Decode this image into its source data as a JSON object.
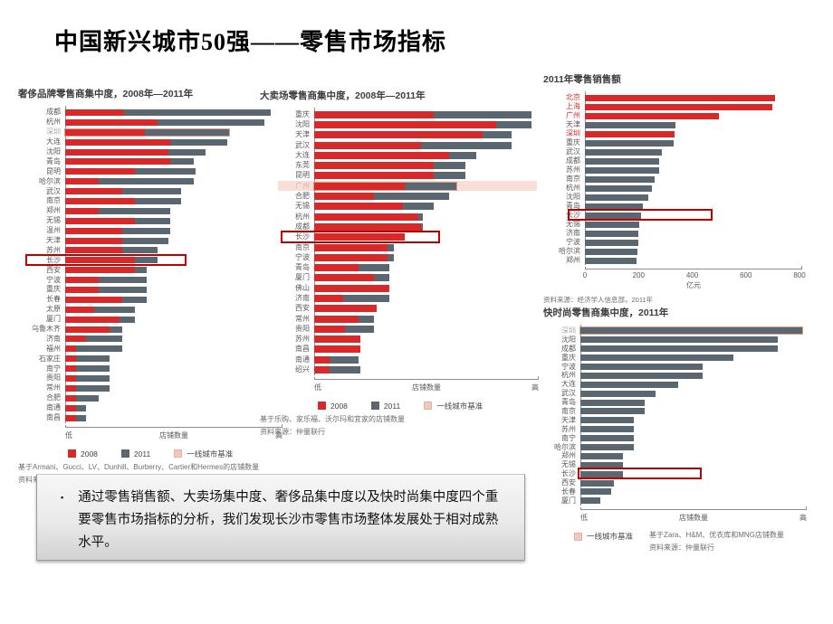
{
  "slide": {
    "title": "中国新兴城市50强——零售市场指标"
  },
  "colors": {
    "red": "#d7282a",
    "slate": "#5b6770",
    "benchmark_fill": "#f3c7ba",
    "benchmark_outline": "#e09b80",
    "highlight_box": "#c00000",
    "label_gray": "#595959",
    "label_benchmark": "#a6a6a6"
  },
  "chart_data": [
    {
      "type": "bar",
      "title": "奢侈品牌零售商集中度，2008年—2011年",
      "xlabel": "店铺数量",
      "x_axis_ends": [
        "低",
        "高"
      ],
      "legend": [
        "2008",
        "2011",
        "一线城市基准"
      ],
      "benchmark_city": "深圳",
      "highlight_city": "长沙",
      "footnotes": [
        "基于Armani、Gucci、LV、Dunhill、Burberry、Cartier和Hermes的店铺数量",
        "资料来源：仲量联行"
      ],
      "rows": [
        {
          "city": "成都",
          "y2008": 28,
          "y2011": 98
        },
        {
          "city": "杭州",
          "y2008": 44,
          "y2011": 95
        },
        {
          "city": "深圳",
          "y2008": 38,
          "y2011": 78,
          "benchmark": true
        },
        {
          "city": "大连",
          "y2008": 50,
          "y2011": 77
        },
        {
          "city": "沈阳",
          "y2008": 49,
          "y2011": 67
        },
        {
          "city": "青岛",
          "y2008": 50,
          "y2011": 61
        },
        {
          "city": "昆明",
          "y2008": 33,
          "y2011": 62
        },
        {
          "city": "哈尔滨",
          "y2008": 16,
          "y2011": 61
        },
        {
          "city": "武汉",
          "y2008": 27,
          "y2011": 55
        },
        {
          "city": "南京",
          "y2008": 33,
          "y2011": 55
        },
        {
          "city": "郑州",
          "y2008": 16,
          "y2011": 50
        },
        {
          "city": "无锡",
          "y2008": 33,
          "y2011": 50
        },
        {
          "city": "温州",
          "y2008": 27,
          "y2011": 50
        },
        {
          "city": "天津",
          "y2008": 27,
          "y2011": 49
        },
        {
          "city": "苏州",
          "y2008": 27,
          "y2011": 44
        },
        {
          "city": "长沙",
          "y2008": 33,
          "y2011": 44,
          "highlight": true
        },
        {
          "city": "西安",
          "y2008": 33,
          "y2011": 39
        },
        {
          "city": "宁波",
          "y2008": 16,
          "y2011": 39
        },
        {
          "city": "重庆",
          "y2008": 16,
          "y2011": 39
        },
        {
          "city": "长春",
          "y2008": 27,
          "y2011": 39
        },
        {
          "city": "太原",
          "y2008": 14,
          "y2011": 33
        },
        {
          "city": "厦门",
          "y2008": 26,
          "y2011": 33
        },
        {
          "city": "乌鲁木齐",
          "y2008": 21,
          "y2011": 27
        },
        {
          "city": "济南",
          "y2008": 10,
          "y2011": 27
        },
        {
          "city": "福州",
          "y2008": 5,
          "y2011": 27
        },
        {
          "city": "石家庄",
          "y2008": 5,
          "y2011": 21
        },
        {
          "city": "南宁",
          "y2008": 5,
          "y2011": 21
        },
        {
          "city": "贵阳",
          "y2008": 5,
          "y2011": 21
        },
        {
          "city": "常州",
          "y2008": 5,
          "y2011": 21
        },
        {
          "city": "合肥",
          "y2008": 5,
          "y2011": 16
        },
        {
          "city": "南通",
          "y2008": 5,
          "y2011": 10
        },
        {
          "city": "南昌",
          "y2008": 5,
          "y2011": 10
        }
      ]
    },
    {
      "type": "bar",
      "title": "大卖场零售商集中度，2008年—2011年",
      "xlabel": "店铺数量",
      "x_axis_ends": [
        "低",
        "高"
      ],
      "legend": [
        "2008",
        "2011",
        "一线城市基准"
      ],
      "benchmark_city": "广州",
      "highlight_city": "长沙",
      "footnotes": [
        "基于乐购、家乐福、沃尔玛和宜家的店铺数量",
        "资料来源：仲量联行"
      ],
      "rows": [
        {
          "city": "重庆",
          "y2008": 54,
          "y2011": 98
        },
        {
          "city": "沈阳",
          "y2008": 82,
          "y2011": 98
        },
        {
          "city": "天津",
          "y2008": 76,
          "y2011": 89
        },
        {
          "city": "武汉",
          "y2008": 48,
          "y2011": 89
        },
        {
          "city": "大连",
          "y2008": 61,
          "y2011": 73
        },
        {
          "city": "东莞",
          "y2008": 54,
          "y2011": 68
        },
        {
          "city": "昆明",
          "y2008": 54,
          "y2011": 68
        },
        {
          "city": "广州",
          "y2008": 41,
          "y2011": 64,
          "benchmark": true
        },
        {
          "city": "合肥",
          "y2008": 27,
          "y2011": 61
        },
        {
          "city": "无锡",
          "y2008": 40,
          "y2011": 54
        },
        {
          "city": "杭州",
          "y2008": 47,
          "y2011": 49
        },
        {
          "city": "成都",
          "y2008": 48,
          "y2011": 49
        },
        {
          "city": "长沙",
          "y2008": 41,
          "y2011": 41,
          "highlight": true
        },
        {
          "city": "南京",
          "y2008": 33,
          "y2011": 36
        },
        {
          "city": "宁波",
          "y2008": 33,
          "y2011": 36
        },
        {
          "city": "青岛",
          "y2008": 20,
          "y2011": 34
        },
        {
          "city": "厦门",
          "y2008": 27,
          "y2011": 34
        },
        {
          "city": "佛山",
          "y2008": 34,
          "y2011": 34
        },
        {
          "city": "济南",
          "y2008": 13,
          "y2011": 34
        },
        {
          "city": "西安",
          "y2008": 28,
          "y2011": 28
        },
        {
          "city": "常州",
          "y2008": 20,
          "y2011": 27
        },
        {
          "city": "贵阳",
          "y2008": 14,
          "y2011": 27
        },
        {
          "city": "苏州",
          "y2008": 21,
          "y2011": 21
        },
        {
          "city": "南昌",
          "y2008": 21,
          "y2011": 21
        },
        {
          "city": "南通",
          "y2008": 7,
          "y2011": 20
        },
        {
          "city": "绍兴",
          "y2008": 7,
          "y2011": 21
        }
      ]
    },
    {
      "type": "bar",
      "title": "2011年零售销售额",
      "xlabel": "亿元",
      "xticks": [
        "0",
        "200",
        "400",
        "600",
        "800"
      ],
      "xlim": [
        0,
        800
      ],
      "highlight_city": "长沙",
      "source": "资料来源：经济学人信息部，2011年",
      "rows": [
        {
          "city": "北京",
          "value": 710,
          "tier1": true
        },
        {
          "city": "上海",
          "value": 700,
          "tier1": true
        },
        {
          "city": "广州",
          "value": 500,
          "tier1": true
        },
        {
          "city": "天津",
          "value": 338
        },
        {
          "city": "深圳",
          "value": 335,
          "tier1": true
        },
        {
          "city": "重庆",
          "value": 331
        },
        {
          "city": "武汉",
          "value": 287
        },
        {
          "city": "成都",
          "value": 277
        },
        {
          "city": "苏州",
          "value": 277
        },
        {
          "city": "南京",
          "value": 260
        },
        {
          "city": "杭州",
          "value": 250
        },
        {
          "city": "沈阳",
          "value": 237
        },
        {
          "city": "青岛",
          "value": 216
        },
        {
          "city": "长沙",
          "value": 210,
          "highlight": true
        },
        {
          "city": "无锡",
          "value": 203
        },
        {
          "city": "济南",
          "value": 199
        },
        {
          "city": "宁波",
          "value": 199
        },
        {
          "city": "哈尔滨",
          "value": 196
        },
        {
          "city": "郑州",
          "value": 193
        }
      ]
    },
    {
      "type": "bar",
      "title": "快时尚零售商集中度，2011年",
      "xlabel": "店铺数量",
      "x_axis_ends": [
        "低",
        "高"
      ],
      "legend": [
        "一线城市基准"
      ],
      "benchmark_city": "深圳",
      "highlight_city": "长沙",
      "footnotes": [
        "基于Zara、H&M、优衣库和MNG店铺数量",
        "资料来源：仲量联行"
      ],
      "rows": [
        {
          "city": "深圳",
          "value": 100,
          "benchmark": true
        },
        {
          "city": "沈阳",
          "value": 89
        },
        {
          "city": "成都",
          "value": 89
        },
        {
          "city": "重庆",
          "value": 69
        },
        {
          "city": "宁波",
          "value": 55
        },
        {
          "city": "杭州",
          "value": 55
        },
        {
          "city": "大连",
          "value": 44
        },
        {
          "city": "武汉",
          "value": 34
        },
        {
          "city": "青岛",
          "value": 29
        },
        {
          "city": "南京",
          "value": 29
        },
        {
          "city": "天津",
          "value": 24
        },
        {
          "city": "苏州",
          "value": 24
        },
        {
          "city": "南宁",
          "value": 24
        },
        {
          "city": "哈尔滨",
          "value": 24
        },
        {
          "city": "郑州",
          "value": 19
        },
        {
          "city": "无锡",
          "value": 19
        },
        {
          "city": "长沙",
          "value": 19,
          "highlight": true
        },
        {
          "city": "西安",
          "value": 15
        },
        {
          "city": "长春",
          "value": 14
        },
        {
          "city": "厦门",
          "value": 9
        }
      ]
    }
  ],
  "note": {
    "bullet": "▪",
    "text": "通过零售销售额、大卖场集中度、奢侈品集中度以及快时尚集中度四个重要零售市场指标的分析，我们发现长沙市零售市场整体发展处于相对成熟水平。"
  }
}
